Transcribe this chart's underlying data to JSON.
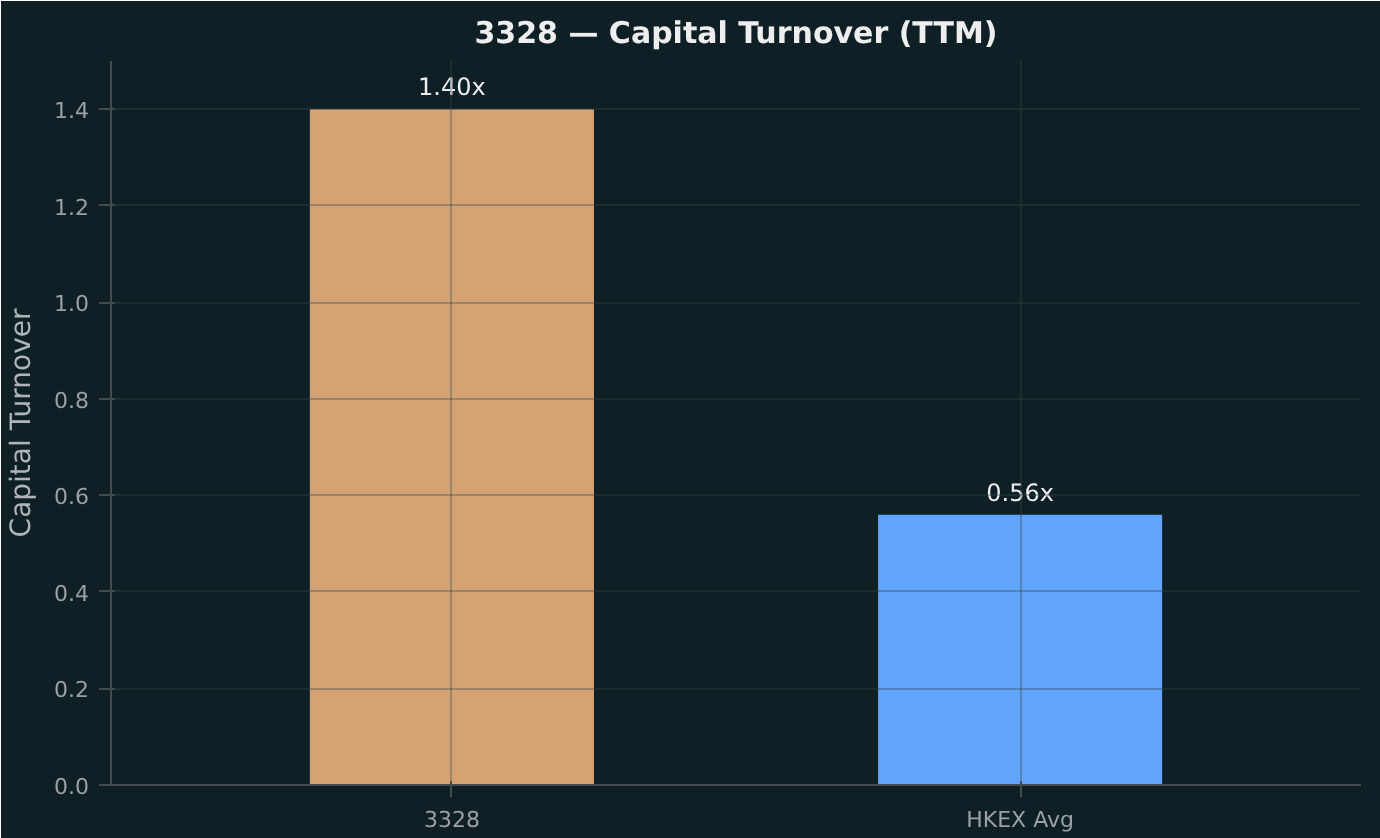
{
  "chart_data": {
    "type": "bar",
    "title": "3328 — Capital Turnover (TTM)",
    "ylabel": "Capital Turnover",
    "categories": [
      "3328",
      "HKEX Avg"
    ],
    "values": [
      1.4,
      0.56
    ],
    "colors": [
      "#d4a373",
      "#60a5fa"
    ],
    "value_labels": [
      "1.40x",
      "0.56x"
    ],
    "ylim": [
      0,
      1.5
    ],
    "yticks": [
      {
        "value": 0,
        "label": "0.0"
      },
      0.2,
      0.4,
      0.6,
      0.8,
      {
        "value": 1,
        "label": "1.0"
      },
      1.2,
      1.4
    ],
    "grid": true
  }
}
